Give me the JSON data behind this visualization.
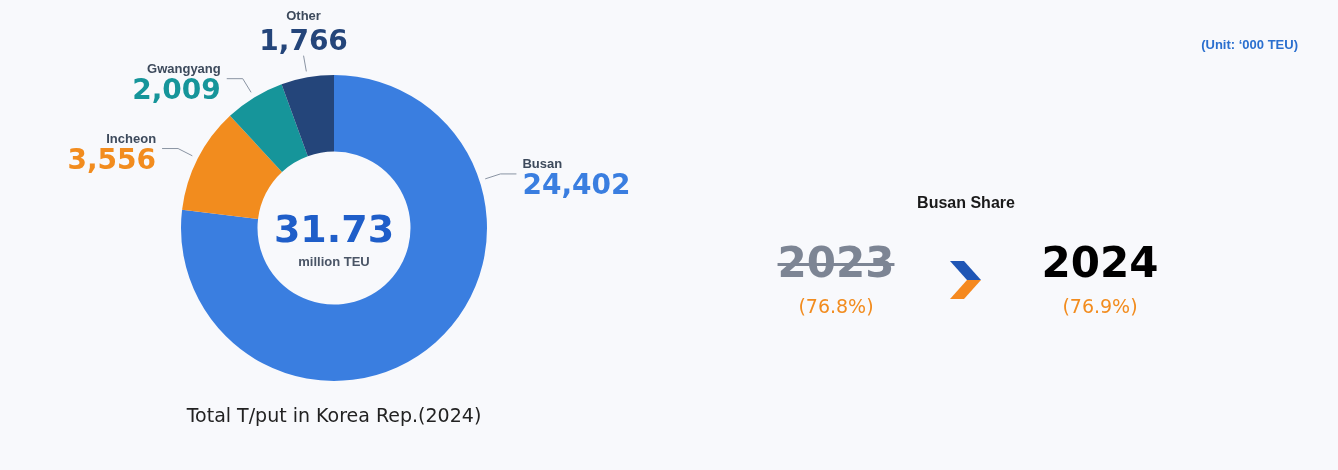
{
  "chart_data": [
    {
      "type": "donut",
      "title": "Total T/put in Korea Rep.(2024)",
      "categories": [
        "Busan",
        "Incheon",
        "Gwangyang",
        "Other"
      ],
      "values": [
        24402,
        3556,
        2009,
        1766
      ],
      "colors": [
        "#3a7ee0",
        "#f28c1e",
        "#16959a",
        "#24457a"
      ],
      "value_labels": [
        "24,402",
        "3,556",
        "2,009",
        "1,766"
      ],
      "legend": false,
      "annotations": [
        "31.73",
        "million TEU",
        "(Unit: ‘000 TEU)"
      ]
    },
    {
      "type": "other",
      "title": "Busan Share",
      "annotations": [
        "2023",
        "(76.8%)",
        "2024",
        "(76.9%)"
      ]
    }
  ]
}
